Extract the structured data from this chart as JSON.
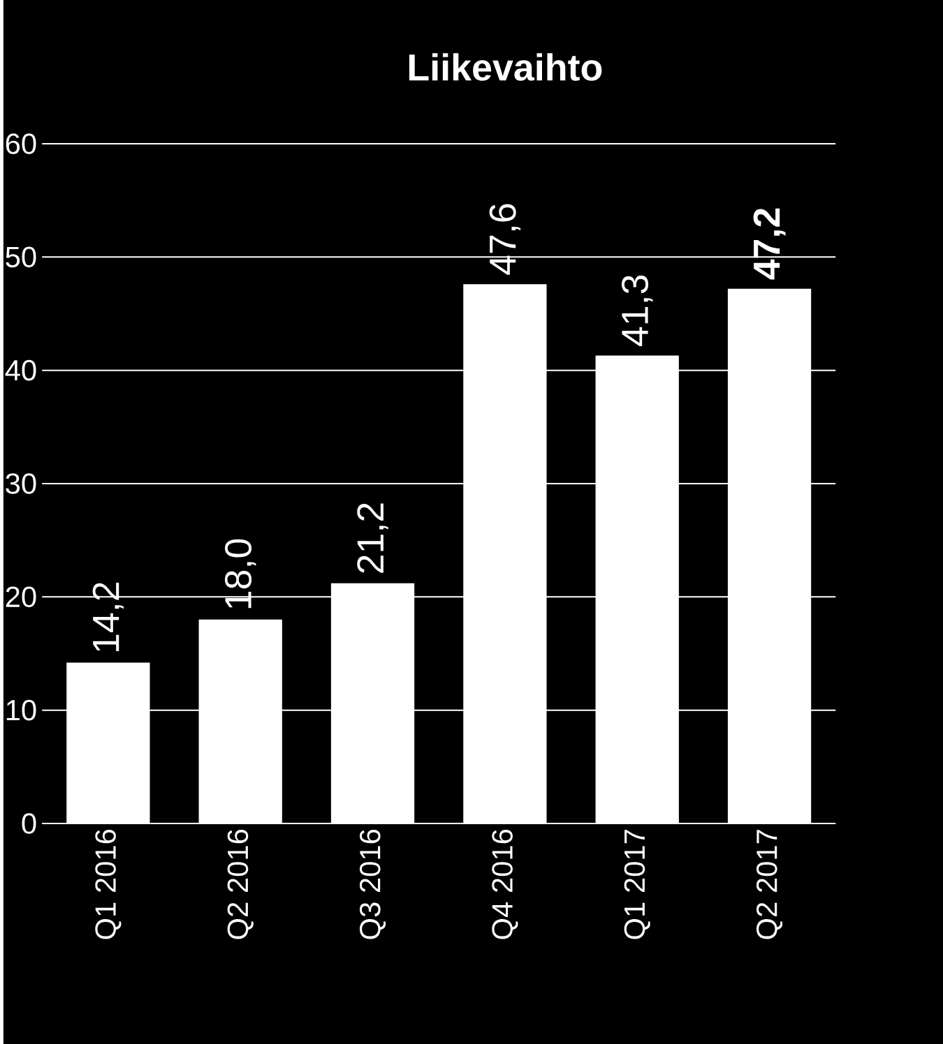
{
  "chart_data": {
    "type": "bar",
    "title": "Liikevaihto",
    "categories": [
      "Q1 2016",
      "Q2 2016",
      "Q3 2016",
      "Q4 2016",
      "Q1 2017",
      "Q2 2017"
    ],
    "values": [
      14.2,
      18.0,
      21.2,
      47.6,
      41.3,
      47.2
    ],
    "value_labels": [
      "14,2",
      "18,0",
      "21,2",
      "47,6",
      "41,3",
      "**47,2**"
    ],
    "color": "#ffffff",
    "ylim": [
      0,
      60
    ],
    "yticks": [
      0,
      10,
      20,
      30,
      40,
      50,
      60
    ],
    "grid": "y"
  }
}
